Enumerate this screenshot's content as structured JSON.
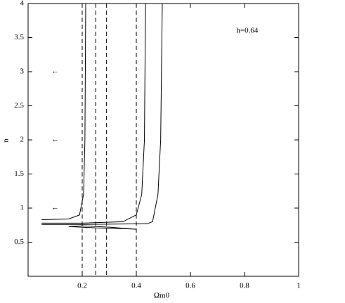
{
  "chart_data": {
    "type": "line",
    "x_label": "Ωm0",
    "y_label": "n",
    "xlim": [
      0,
      1
    ],
    "ylim": [
      0,
      4
    ],
    "xticks": [
      0.2,
      0.4,
      0.6,
      0.8,
      1
    ],
    "yticks": [
      0.5,
      1,
      1.5,
      2,
      2.5,
      3,
      3.5,
      4
    ],
    "color": "#000000",
    "series": [
      {
        "x": [
          0.05,
          0.15,
          0.19,
          0.205,
          0.21,
          0.213
        ],
        "values": [
          0.83,
          0.84,
          0.9,
          1.2,
          2,
          4
        ]
      },
      {
        "x": [
          0.05,
          0.2,
          0.35,
          0.4,
          0.42,
          0.43,
          0.434
        ],
        "values": [
          0.78,
          0.78,
          0.8,
          0.9,
          1.2,
          2,
          4
        ]
      },
      {
        "x": [
          0.05,
          0.2,
          0.44,
          0.46,
          0.48,
          0.49,
          0.496
        ],
        "values": [
          0.76,
          0.76,
          0.77,
          0.8,
          1.2,
          2,
          4
        ]
      },
      {
        "x": [
          0.15,
          0.25,
          0.35,
          0.4,
          0.3,
          0.2,
          0.15
        ],
        "values": [
          0.73,
          0.71,
          0.7,
          0.69,
          0.72,
          0.74,
          0.73
        ]
      }
    ],
    "vlines": [
      0.2,
      0.25,
      0.29,
      0.4
    ],
    "annotations": [
      {
        "text": "←",
        "x": 0.1,
        "y": 3
      },
      {
        "text": "←",
        "x": 0.1,
        "y": 2
      },
      {
        "text": "←",
        "x": 0.1,
        "y": 1
      },
      {
        "text": "h=0.64",
        "x": 0.81,
        "y": 3.6
      }
    ]
  }
}
